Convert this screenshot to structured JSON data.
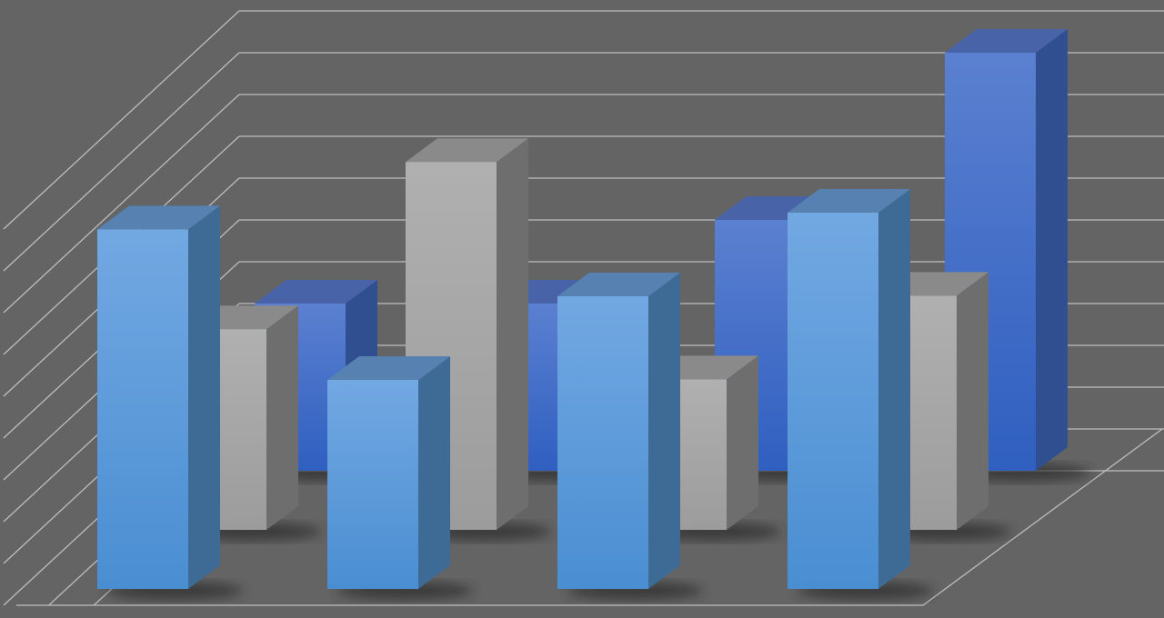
{
  "chart_data": {
    "type": "bar",
    "variant": "3d-clustered-depth",
    "title": "",
    "xlabel": "",
    "ylabel": "",
    "ylim": [
      0,
      11
    ],
    "grid": true,
    "legend": "none",
    "categories": [
      "",
      "",
      "",
      ""
    ],
    "series": [
      {
        "values": [
          8.6,
          5.0,
          7.0,
          9.0
        ],
        "color": "#5b9bd5"
      },
      {
        "values": [
          4.8,
          8.8,
          3.6,
          5.6
        ],
        "color": "#a9a9a9"
      },
      {
        "values": [
          4.0,
          4.0,
          6.0,
          10.0
        ],
        "color": "#4472c4"
      }
    ]
  },
  "colors": {
    "background": "#646464",
    "gridline": "#bdbdbd"
  }
}
